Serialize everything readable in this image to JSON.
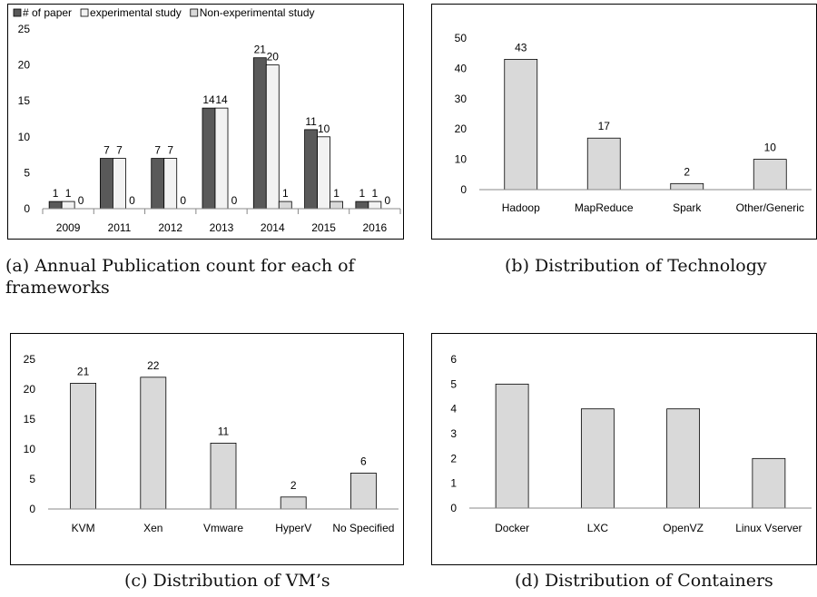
{
  "panels": [
    {
      "caption": "(a) Annual Publication count for each of frameworks",
      "chart_data": {
        "type": "bar",
        "categories": [
          "2009",
          "2011",
          "2012",
          "2013",
          "2014",
          "2015",
          "2016"
        ],
        "series": [
          {
            "name": "# of paper",
            "values": [
              1,
              7,
              7,
              14,
              21,
              11,
              1
            ],
            "color": "#595959"
          },
          {
            "name": "experimental study",
            "values": [
              1,
              7,
              7,
              14,
              20,
              10,
              1
            ],
            "color": "#f2f2f2"
          },
          {
            "name": "Non-experimental study",
            "values": [
              0,
              0,
              0,
              0,
              1,
              1,
              0
            ],
            "color": "#d9d9d9"
          }
        ],
        "ylim": [
          0,
          25
        ],
        "yticks": [
          0,
          5,
          10,
          15,
          20,
          25
        ],
        "legend": "top",
        "grid": false,
        "data_labels": true
      }
    },
    {
      "caption": "(b) Distribution of Technology",
      "chart_data": {
        "type": "bar",
        "categories": [
          "Hadoop",
          "MapReduce",
          "Spark",
          "Other/Generic"
        ],
        "values": [
          43,
          17,
          2,
          10
        ],
        "color": "#d9d9d9",
        "ylim": [
          0,
          50
        ],
        "yticks": [
          0,
          10,
          20,
          30,
          40,
          50
        ],
        "grid": false,
        "data_labels": true
      }
    },
    {
      "caption": "(c) Distribution of VM’s",
      "chart_data": {
        "type": "bar",
        "categories": [
          "KVM",
          "Xen",
          "Vmware",
          "HyperV",
          "No Specified"
        ],
        "values": [
          21,
          22,
          11,
          2,
          6
        ],
        "color": "#d9d9d9",
        "ylim": [
          0,
          25
        ],
        "yticks": [
          0,
          5,
          10,
          15,
          20,
          25
        ],
        "grid": false,
        "data_labels": true
      }
    },
    {
      "caption": "(d) Distribution of Containers",
      "chart_data": {
        "type": "bar",
        "categories": [
          "Docker",
          "LXC",
          "OpenVZ",
          "Linux Vserver"
        ],
        "values": [
          5,
          4,
          4,
          2
        ],
        "color": "#d9d9d9",
        "ylim": [
          0,
          6
        ],
        "yticks": [
          0,
          1,
          2,
          3,
          4,
          5,
          6
        ],
        "grid": false,
        "data_labels": false
      }
    }
  ]
}
